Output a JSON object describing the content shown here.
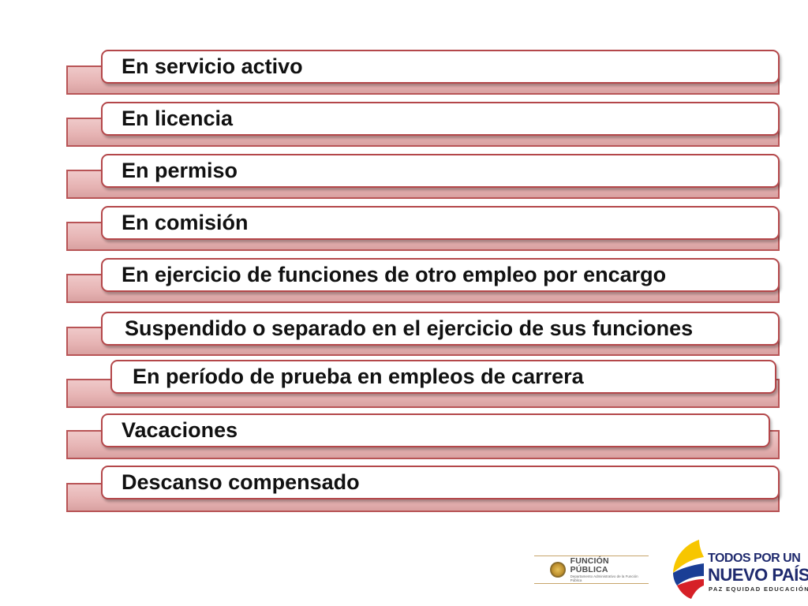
{
  "items": [
    {
      "label": "En servicio activo"
    },
    {
      "label": "En licencia"
    },
    {
      "label": "En permiso"
    },
    {
      "label": "En comisión"
    },
    {
      "label": "En ejercicio de funciones de otro empleo por encargo"
    },
    {
      "label": "Suspendido o separado en el ejercicio de sus funciones"
    },
    {
      "label": "En período de prueba en empleos de carrera"
    },
    {
      "label": "Vacaciones"
    },
    {
      "label": "Descanso compensado"
    }
  ],
  "logos": {
    "funcion_publica": {
      "title": "FUNCIÓN PÚBLICA",
      "subtitle": "Departamento Administrativo de la Función Pública"
    },
    "todos_por_un_nuevo_pais": {
      "line1": "TODOS POR UN",
      "line2": "NUEVO PAÍS",
      "line3": "PAZ  EQUIDAD  EDUCACIÓN"
    }
  },
  "colors": {
    "border_red": "#b4474a",
    "back_bar_pink": "#e6b3b3",
    "brand_blue": "#1f2a6e",
    "flag_yellow": "#f7c600",
    "flag_blue": "#1a3e95",
    "flag_red": "#d62027"
  }
}
